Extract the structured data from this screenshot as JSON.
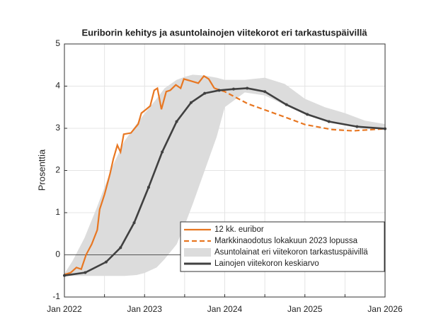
{
  "chart_data": {
    "type": "line",
    "title": "Euriborin kehitys ja asuntolainojen viitekorot eri tarkastuspäivillä",
    "y_label": "Prosenttia",
    "xlim": [
      2022,
      2026
    ],
    "xticks": [
      {
        "value": 2022,
        "label": "Jan 2022"
      },
      {
        "value": 2023,
        "label": "Jan 2023"
      },
      {
        "value": 2024,
        "label": "Jan 2024"
      },
      {
        "value": 2025,
        "label": "Jan 2025"
      },
      {
        "value": 2026,
        "label": "Jan 2026"
      }
    ],
    "xminorticks": [
      2022.5,
      2023.5,
      2024.5,
      2025.5
    ],
    "ylim": [
      -1,
      5
    ],
    "yticks": [
      -1,
      0,
      1,
      2,
      3,
      4,
      5
    ],
    "grid": true,
    "zero_line": true,
    "legend": "lower right",
    "series": [
      {
        "name": "12 kk. euribor",
        "color": "#e87722",
        "style": "solid",
        "x": [
          2022,
          2022.08,
          2022.15,
          2022.21,
          2022.27,
          2022.34,
          2022.41,
          2022.44,
          2022.5,
          2022.57,
          2022.61,
          2022.66,
          2022.7,
          2022.74,
          2022.83,
          2022.92,
          2022.96,
          2023.02,
          2023.07,
          2023.12,
          2023.16,
          2023.21,
          2023.27,
          2023.32,
          2023.39,
          2023.45,
          2023.49,
          2023.58,
          2023.67,
          2023.74,
          2023.8,
          2023.87
        ],
        "values": [
          -0.47,
          -0.42,
          -0.3,
          -0.34,
          0,
          0.25,
          0.59,
          1.08,
          1.43,
          1.93,
          2.27,
          2.6,
          2.44,
          2.86,
          2.89,
          3.1,
          3.36,
          3.45,
          3.53,
          3.9,
          3.95,
          3.45,
          3.87,
          3.9,
          4.03,
          3.95,
          4.17,
          4.12,
          4.07,
          4.24,
          4.17,
          3.95
        ]
      },
      {
        "name": "Markkinaodotus lokakuun 2023 lopussa",
        "color": "#e87722",
        "style": "dashed",
        "x": [
          2023.87,
          2024,
          2024.29,
          2024.73,
          2025,
          2025.34,
          2025.6,
          2026
        ],
        "values": [
          3.95,
          3.87,
          3.58,
          3.28,
          3.09,
          2.97,
          2.94,
          2.99
        ]
      },
      {
        "name": "Asuntolainat eri viitekoron tarkastuspäivillä",
        "color": "#dcdcdc",
        "style": "band",
        "x": [
          2022,
          2022.1,
          2022.25,
          2022.4,
          2022.5,
          2022.6,
          2022.75,
          2022.9,
          2023,
          2023.15,
          2023.25,
          2023.4,
          2023.5,
          2023.6,
          2023.75,
          2023.9,
          2024,
          2024.25,
          2024.5,
          2024.75,
          2025,
          2025.25,
          2025.5,
          2025.75,
          2026
        ],
        "lower": [
          -0.5,
          -0.5,
          -0.5,
          -0.5,
          -0.5,
          -0.5,
          -0.5,
          -0.48,
          -0.43,
          -0.3,
          -0.1,
          0.25,
          0.7,
          1.2,
          2.0,
          2.8,
          3.5,
          3.85,
          3.78,
          3.55,
          3.35,
          3.2,
          3.08,
          3.0,
          2.97
        ],
        "upper": [
          -0.45,
          -0.15,
          0.4,
          1.1,
          1.6,
          2.1,
          2.7,
          3.1,
          3.35,
          3.7,
          3.95,
          4.15,
          4.22,
          4.27,
          4.25,
          4.2,
          4.15,
          4.15,
          4.2,
          4.05,
          3.7,
          3.5,
          3.36,
          3.18,
          3.1
        ]
      },
      {
        "name": "Lainojen viitekoron keskiarvo",
        "color": "#404040",
        "style": "markers",
        "x": [
          2022,
          2022.26,
          2022.52,
          2022.7,
          2022.87,
          2023.05,
          2023.22,
          2023.4,
          2023.58,
          2023.75,
          2023.93,
          2024.11,
          2024.28,
          2024.5,
          2024.77,
          2025.03,
          2025.3,
          2025.65,
          2026
        ],
        "values": [
          -0.49,
          -0.42,
          -0.17,
          0.17,
          0.76,
          1.6,
          2.44,
          3.16,
          3.61,
          3.83,
          3.9,
          3.93,
          3.95,
          3.87,
          3.56,
          3.33,
          3.16,
          3.04,
          2.99
        ]
      }
    ]
  }
}
